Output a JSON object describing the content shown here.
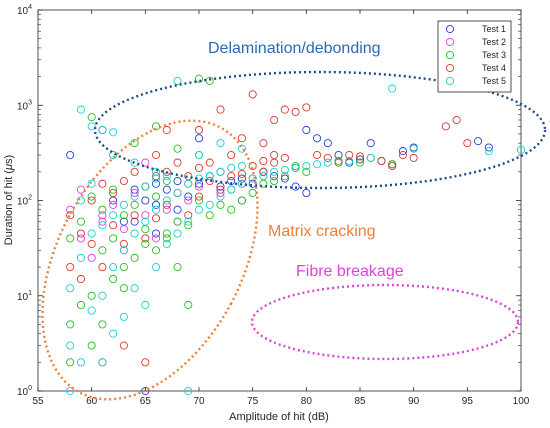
{
  "chart_data": {
    "type": "scatter",
    "title": "",
    "xlabel": "Amplitude of hit (dB)",
    "ylabel_prefix": "Duration of hit (",
    "ylabel_mu": "μ",
    "ylabel_suffix": "s)",
    "xlim": [
      55,
      100
    ],
    "ylim": [
      1,
      10000
    ],
    "yscale": "log",
    "xticks": [
      "55",
      "60",
      "65",
      "70",
      "75",
      "80",
      "85",
      "90",
      "95",
      "100"
    ],
    "yticks": [
      {
        "base": "10",
        "exp": "0"
      },
      {
        "base": "10",
        "exp": "1"
      },
      {
        "base": "10",
        "exp": "2"
      },
      {
        "base": "10",
        "exp": "3"
      },
      {
        "base": "10",
        "exp": "4"
      }
    ],
    "grid": false,
    "legend_position": "top-right",
    "series": [
      {
        "name": "Test 1",
        "color": "#1f3fd6",
        "points": [
          [
            58,
            300
          ],
          [
            61,
            550
          ],
          [
            62,
            100
          ],
          [
            63,
            60
          ],
          [
            64,
            130
          ],
          [
            65,
            1
          ],
          [
            65,
            100
          ],
          [
            66,
            90
          ],
          [
            66,
            150
          ],
          [
            67,
            130
          ],
          [
            68,
            80
          ],
          [
            68,
            160
          ],
          [
            69,
            110
          ],
          [
            70,
            450
          ],
          [
            70,
            150
          ],
          [
            71,
            180
          ],
          [
            72,
            140
          ],
          [
            73,
            160
          ],
          [
            74,
            170
          ],
          [
            75,
            150
          ],
          [
            76,
            200
          ],
          [
            77,
            180
          ],
          [
            78,
            170
          ],
          [
            79,
            140
          ],
          [
            80,
            120
          ],
          [
            80,
            550
          ],
          [
            81,
            450
          ],
          [
            82,
            400
          ],
          [
            83,
            300
          ],
          [
            84,
            250
          ],
          [
            85,
            270
          ],
          [
            86,
            400
          ],
          [
            87,
            260
          ],
          [
            88,
            240
          ],
          [
            89,
            330
          ],
          [
            90,
            360
          ],
          [
            96,
            420
          ],
          [
            97,
            360
          ],
          [
            64,
            60
          ],
          [
            66,
            45
          ]
        ]
      },
      {
        "name": "Test 2",
        "color": "#e040e0",
        "points": [
          [
            58,
            80
          ],
          [
            59,
            40
          ],
          [
            60,
            25
          ],
          [
            61,
            60
          ],
          [
            62,
            90
          ],
          [
            63,
            50
          ],
          [
            64,
            120
          ],
          [
            65,
            250
          ],
          [
            66,
            40
          ],
          [
            67,
            80
          ],
          [
            68,
            60
          ],
          [
            69,
            100
          ],
          [
            70,
            140
          ],
          [
            72,
            120
          ],
          [
            74,
            100
          ],
          [
            76,
            180
          ],
          [
            59,
            130
          ],
          [
            61,
            70
          ],
          [
            63,
            30
          ],
          [
            65,
            70
          ]
        ]
      },
      {
        "name": "Test 3",
        "color": "#22c022",
        "points": [
          [
            58,
            2
          ],
          [
            58,
            5
          ],
          [
            58,
            40
          ],
          [
            59,
            8
          ],
          [
            59,
            60
          ],
          [
            60,
            3
          ],
          [
            60,
            10
          ],
          [
            60,
            110
          ],
          [
            61,
            30
          ],
          [
            61,
            80
          ],
          [
            62,
            15
          ],
          [
            62,
            40
          ],
          [
            62,
            130
          ],
          [
            63,
            20
          ],
          [
            63,
            70
          ],
          [
            64,
            25
          ],
          [
            64,
            90
          ],
          [
            65,
            50
          ],
          [
            65,
            140
          ],
          [
            66,
            30
          ],
          [
            66,
            110
          ],
          [
            67,
            40
          ],
          [
            67,
            160
          ],
          [
            68,
            60
          ],
          [
            68,
            20
          ],
          [
            69,
            8
          ],
          [
            69,
            150
          ],
          [
            70,
            100
          ],
          [
            70,
            1900
          ],
          [
            71,
            1800
          ],
          [
            72,
            90
          ],
          [
            73,
            130
          ],
          [
            74,
            100
          ],
          [
            75,
            120
          ],
          [
            76,
            150
          ],
          [
            77,
            160
          ],
          [
            78,
            180
          ],
          [
            60,
            750
          ],
          [
            62,
            300
          ],
          [
            64,
            400
          ],
          [
            66,
            600
          ],
          [
            68,
            350
          ],
          [
            70,
            300
          ],
          [
            61,
            5
          ],
          [
            63,
            12
          ],
          [
            65,
            35
          ],
          [
            67,
            45
          ],
          [
            69,
            55
          ],
          [
            71,
            70
          ],
          [
            73,
            80
          ],
          [
            88,
            240
          ],
          [
            85,
            250
          ],
          [
            83,
            260
          ],
          [
            80,
            200
          ],
          [
            79,
            230
          ]
        ]
      },
      {
        "name": "Test 4",
        "color": "#d63a2a",
        "points": [
          [
            58,
            20
          ],
          [
            58,
            70
          ],
          [
            59,
            45
          ],
          [
            59,
            15
          ],
          [
            60,
            100
          ],
          [
            60,
            35
          ],
          [
            61,
            150
          ],
          [
            61,
            20
          ],
          [
            62,
            55
          ],
          [
            62,
            120
          ],
          [
            63,
            160
          ],
          [
            63,
            35
          ],
          [
            64,
            70
          ],
          [
            64,
            200
          ],
          [
            65,
            140
          ],
          [
            65,
            40
          ],
          [
            66,
            180
          ],
          [
            66,
            65
          ],
          [
            67,
            90
          ],
          [
            67,
            200
          ],
          [
            68,
            120
          ],
          [
            68,
            250
          ],
          [
            69,
            180
          ],
          [
            69,
            70
          ],
          [
            70,
            220
          ],
          [
            70,
            110
          ],
          [
            71,
            160
          ],
          [
            71,
            250
          ],
          [
            72,
            130
          ],
          [
            72,
            200
          ],
          [
            73,
            180
          ],
          [
            73,
            300
          ],
          [
            74,
            190
          ],
          [
            74,
            150
          ],
          [
            75,
            230
          ],
          [
            75,
            170
          ],
          [
            76,
            260
          ],
          [
            76,
            200
          ],
          [
            77,
            250
          ],
          [
            77,
            300
          ],
          [
            78,
            280
          ],
          [
            78,
            900
          ],
          [
            79,
            220
          ],
          [
            79,
            850
          ],
          [
            80,
            950
          ],
          [
            81,
            300
          ],
          [
            82,
            280
          ],
          [
            83,
            250
          ],
          [
            84,
            300
          ],
          [
            85,
            290
          ],
          [
            86,
            280
          ],
          [
            87,
            260
          ],
          [
            88,
            230
          ],
          [
            89,
            300
          ],
          [
            90,
            280
          ],
          [
            93,
            600
          ],
          [
            94,
            700
          ],
          [
            95,
            400
          ],
          [
            70,
            550
          ],
          [
            72,
            900
          ],
          [
            75,
            1300
          ],
          [
            77,
            700
          ],
          [
            67,
            550
          ],
          [
            74,
            450
          ],
          [
            76,
            400
          ],
          [
            66,
            300
          ],
          [
            65,
            2
          ],
          [
            63,
            3
          ],
          [
            61,
            2
          ]
        ]
      },
      {
        "name": "Test 5",
        "color": "#18d0d0",
        "points": [
          [
            58,
            1
          ],
          [
            58,
            3
          ],
          [
            58,
            12
          ],
          [
            59,
            2
          ],
          [
            59,
            25
          ],
          [
            59,
            100
          ],
          [
            60,
            7
          ],
          [
            60,
            45
          ],
          [
            60,
            150
          ],
          [
            61,
            2
          ],
          [
            61,
            10
          ],
          [
            61,
            55
          ],
          [
            61,
            550
          ],
          [
            62,
            4
          ],
          [
            62,
            20
          ],
          [
            62,
            70
          ],
          [
            62,
            520
          ],
          [
            63,
            6
          ],
          [
            63,
            30
          ],
          [
            63,
            90
          ],
          [
            64,
            12
          ],
          [
            64,
            45
          ],
          [
            64,
            110
          ],
          [
            65,
            8
          ],
          [
            65,
            60
          ],
          [
            65,
            140
          ],
          [
            66,
            20
          ],
          [
            66,
            80
          ],
          [
            66,
            170
          ],
          [
            67,
            35
          ],
          [
            67,
            100
          ],
          [
            67,
            180
          ],
          [
            68,
            45
          ],
          [
            68,
            120
          ],
          [
            69,
            1
          ],
          [
            69,
            60
          ],
          [
            69,
            150
          ],
          [
            70,
            80
          ],
          [
            70,
            170
          ],
          [
            71,
            90
          ],
          [
            71,
            180
          ],
          [
            72,
            110
          ],
          [
            72,
            200
          ],
          [
            73,
            130
          ],
          [
            73,
            220
          ],
          [
            74,
            150
          ],
          [
            74,
            230
          ],
          [
            75,
            170
          ],
          [
            76,
            180
          ],
          [
            77,
            200
          ],
          [
            78,
            210
          ],
          [
            79,
            220
          ],
          [
            80,
            230
          ],
          [
            81,
            240
          ],
          [
            82,
            250
          ],
          [
            84,
            260
          ],
          [
            86,
            280
          ],
          [
            88,
            1500
          ],
          [
            90,
            350
          ],
          [
            97,
            330
          ],
          [
            100,
            340
          ],
          [
            59,
            900
          ],
          [
            60,
            600
          ],
          [
            62,
            300
          ],
          [
            64,
            250
          ],
          [
            66,
            200
          ],
          [
            68,
            1800
          ],
          [
            70,
            300
          ],
          [
            72,
            400
          ],
          [
            74,
            350
          ]
        ]
      }
    ],
    "annotations": [
      {
        "text": "Delamination/debonding",
        "color": "#2a6ab1"
      },
      {
        "text": "Matrix cracking",
        "color": "#ef7d3a"
      },
      {
        "text": "Fibre breakage",
        "color": "#e040e0"
      }
    ]
  }
}
